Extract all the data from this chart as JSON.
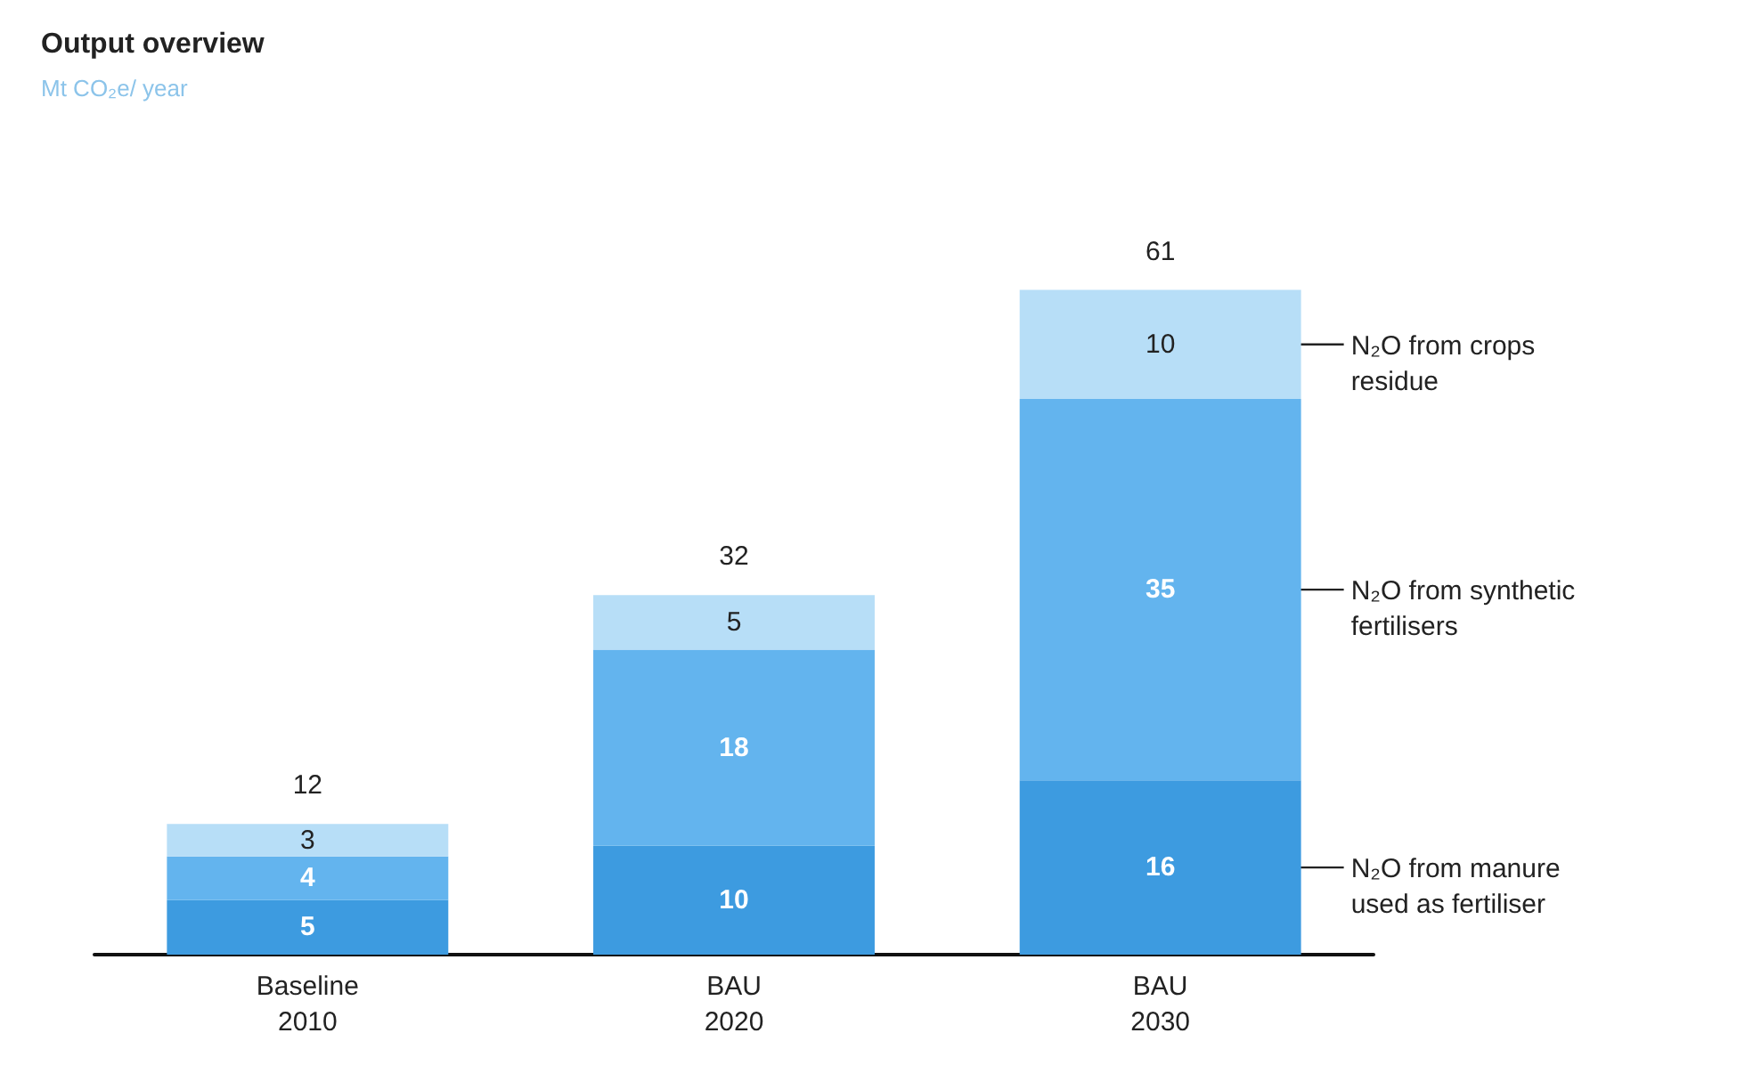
{
  "chart_data": {
    "type": "bar",
    "title": "Output overview",
    "subtitle": "Mt CO₂e/ year",
    "stacked": true,
    "data_labels": true,
    "legend": false,
    "categories": [
      "Baseline\n2010",
      "BAU\n2020",
      "BAU\n2030"
    ],
    "series": [
      {
        "name": "N₂O from manure used as fertiliser",
        "color": "#3d9be0",
        "values": [
          5,
          10,
          16
        ]
      },
      {
        "name": "N₂O from synthetic fertilisers",
        "color": "#63b4ee",
        "values": [
          4,
          18,
          35
        ]
      },
      {
        "name": "N₂O from crops residue",
        "color": "#b7def7",
        "values": [
          3,
          5,
          10
        ]
      }
    ],
    "totals": [
      "12",
      "32",
      "61"
    ]
  }
}
